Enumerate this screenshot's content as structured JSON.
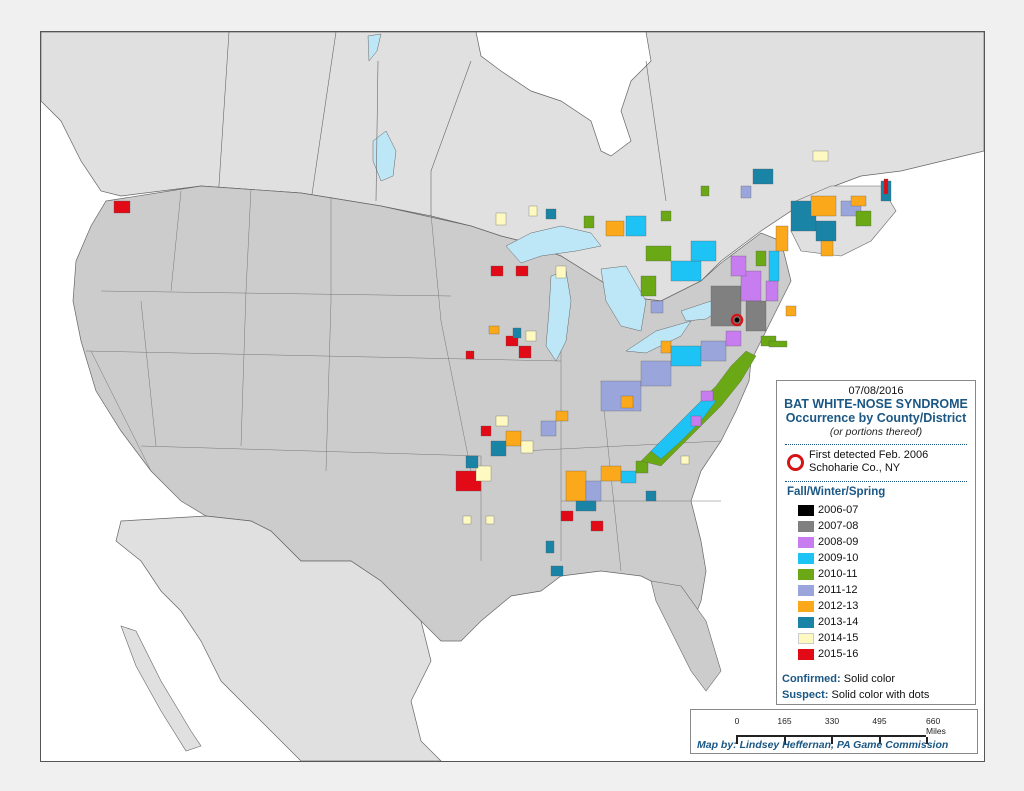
{
  "legend": {
    "date": "07/08/2016",
    "title_line1": "BAT WHITE-NOSE SYNDROME",
    "title_line2": "Occurrence by County/District",
    "subtitle": "(or portions thereof)",
    "first_detected_line1": "First detected Feb. 2006",
    "first_detected_line2": "Schoharie Co., NY",
    "first_detected_marker_color": "#d51515",
    "season_heading": "Fall/Winter/Spring",
    "seasons": [
      {
        "label": "2006-07",
        "color": "#000000"
      },
      {
        "label": "2007-08",
        "color": "#808080"
      },
      {
        "label": "2008-09",
        "color": "#c77cf0"
      },
      {
        "label": "2009-10",
        "color": "#1ec3f5"
      },
      {
        "label": "2010-11",
        "color": "#6aa815"
      },
      {
        "label": "2011-12",
        "color": "#9aa6db"
      },
      {
        "label": "2012-13",
        "color": "#fba81a"
      },
      {
        "label": "2013-14",
        "color": "#1a84a6"
      },
      {
        "label": "2014-15",
        "color": "#fdf9c0"
      },
      {
        "label": "2015-16",
        "color": "#e20a16"
      }
    ],
    "confirmed_label": "Confirmed:",
    "confirmed_value": "Solid color",
    "suspect_label": "Suspect:",
    "suspect_value": "Solid color with dots"
  },
  "scale_bar": {
    "ticks": [
      "0",
      "165",
      "330",
      "495",
      "660 Miles"
    ],
    "credit": "Map by: Lindsey Heffernan, PA Game Commission"
  },
  "map": {
    "colors": {
      "us_land": "#cccccc",
      "canada_mexico_land": "#e0e0e0",
      "water": "#ffffff",
      "lakes": "#bde6f7",
      "borders": "#666666"
    }
  }
}
